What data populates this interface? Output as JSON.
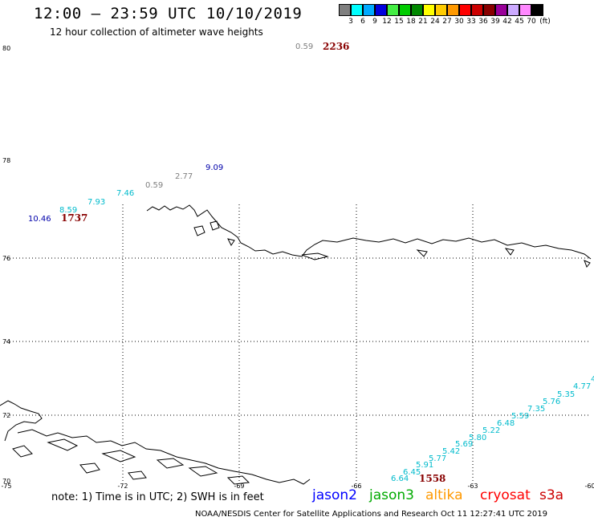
{
  "header": {
    "title": "12:00 – 23:59 UTC 10/10/2019",
    "subtitle": "12 hour collection of altimeter wave heights"
  },
  "colorbar": {
    "labels": [
      "3",
      "6",
      "9",
      "12",
      "15",
      "18",
      "21",
      "24",
      "27",
      "30",
      "33",
      "36",
      "39",
      "42",
      "45",
      "70",
      "(ft)"
    ],
    "colors": [
      "#7f7f7f",
      "#00ffff",
      "#00aaff",
      "#0000dd",
      "#44ee44",
      "#00cc00",
      "#008800",
      "#ffff00",
      "#ffcc00",
      "#ff9900",
      "#ff0000",
      "#cc0000",
      "#880000",
      "#990099",
      "#ccaaff",
      "#ff88ff",
      "#000000"
    ]
  },
  "axes": {
    "lat_labels": [
      "80",
      "78",
      "76",
      "74",
      "72",
      "70"
    ],
    "lon_labels": [
      "-75",
      "-72",
      "-69",
      "-66",
      "-63",
      "-60"
    ]
  },
  "tracks": {
    "track_1": {
      "color": "#00bbcc",
      "values": [
        "6.64",
        "6.45",
        "5.91",
        "5.77",
        "5.42",
        "5.69",
        "5.80",
        "5.22",
        "6.48",
        "5.59",
        "7.35",
        "5.76",
        "5.35",
        "4.77",
        "4"
      ]
    },
    "track_2": [
      {
        "value": "10.46",
        "color": "#0000aa"
      },
      {
        "value": "8.59",
        "color": "#00bbcc"
      },
      {
        "value": "7.93",
        "color": "#00bbcc"
      },
      {
        "value": "7.46",
        "color": "#00bbcc"
      },
      {
        "value": "0.59",
        "color": "#7f7f7f"
      },
      {
        "value": "2.77",
        "color": "#7f7f7f"
      },
      {
        "value": "9.09",
        "color": "#0000aa"
      }
    ],
    "top_value": {
      "value": "0.59",
      "color": "#7f7f7f"
    },
    "times": [
      {
        "value": "2236",
        "color": "#880000"
      },
      {
        "value": "1737",
        "color": "#880000"
      },
      {
        "value": "1558",
        "color": "#880000"
      }
    ]
  },
  "footer": {
    "note": "note: 1) Time is in UTC; 2) SWH is in feet",
    "satellites": [
      {
        "name": "jason2",
        "color": "#0000ff"
      },
      {
        "name": "jason3",
        "color": "#00aa00"
      },
      {
        "name": "altika",
        "color": "#ff9900"
      },
      {
        "name": "cryosat",
        "color": "#ff0000"
      },
      {
        "name": "s3a",
        "color": "#cc0000"
      }
    ],
    "credit": "NOAA/NESDIS Center for Satellite Applications and Research    Oct 11 12:27:41 UTC 2019"
  }
}
